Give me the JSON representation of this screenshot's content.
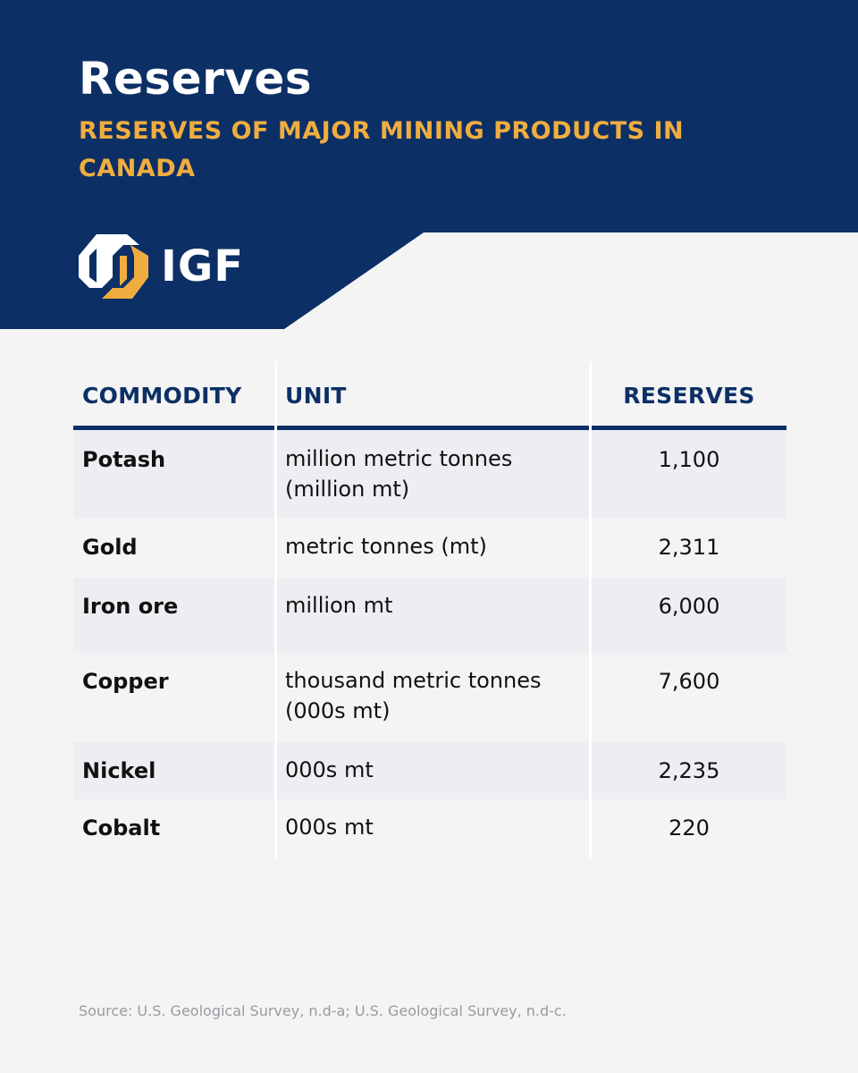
{
  "header": {
    "title": "Reserves",
    "subtitle": "RESERVES OF MAJOR MINING PRODUCTS IN CANADA",
    "logo_text": "IGF",
    "colors": {
      "navy": "#0c3066",
      "gold": "#f0ad3f",
      "background": "#f4f4f5"
    }
  },
  "table": {
    "headers": {
      "commodity": "COMMODITY",
      "unit": "UNIT",
      "reserves": "RESERVES"
    },
    "rows": [
      {
        "commodity": "Potash",
        "unit": "million metric tonnes (million mt)",
        "reserves": "1,100"
      },
      {
        "commodity": "Gold",
        "unit": "metric tonnes (mt)",
        "reserves": "2,311"
      },
      {
        "commodity": "Iron ore",
        "unit": "million mt",
        "reserves": "6,000"
      },
      {
        "commodity": "Copper",
        "unit": "thousand metric tonnes (000s mt)",
        "reserves": "7,600"
      },
      {
        "commodity": "Nickel",
        "unit": "000s mt",
        "reserves": "2,235"
      },
      {
        "commodity": "Cobalt",
        "unit": "000s mt",
        "reserves": "220"
      }
    ]
  },
  "source": "Source: U.S. Geological Survey, n.d-a; U.S. Geological Survey, n.d-c."
}
